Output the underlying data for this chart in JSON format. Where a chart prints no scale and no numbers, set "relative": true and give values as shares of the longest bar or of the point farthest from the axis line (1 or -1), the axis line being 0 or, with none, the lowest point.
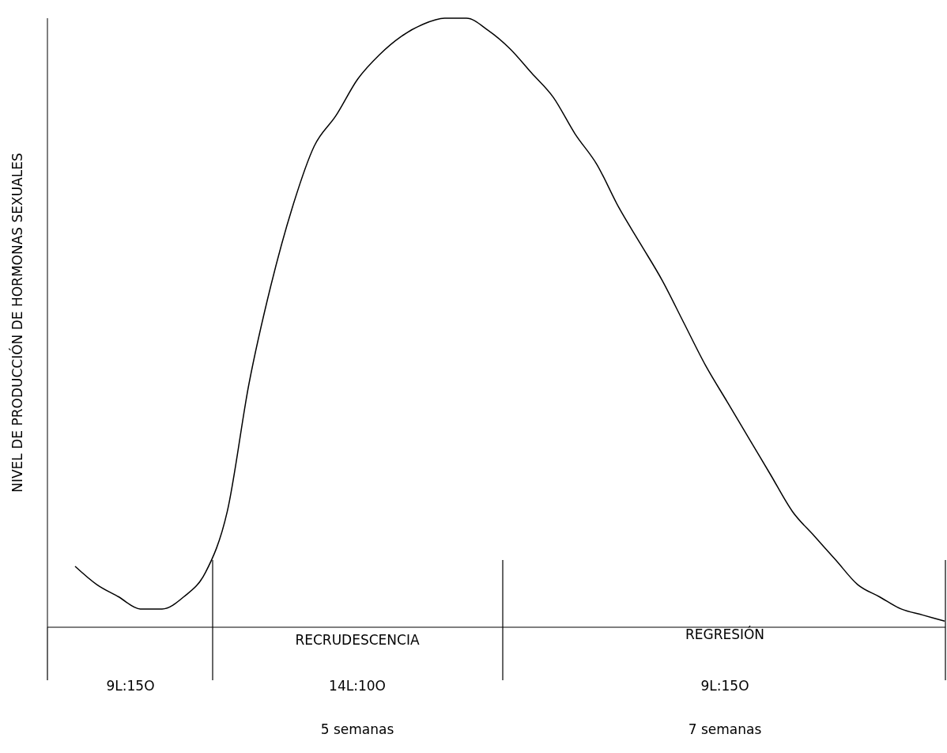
{
  "chart_data": {
    "type": "line",
    "relative": true,
    "ylabel": "NIVEL DE PRODUCCIÓN DE HORMONAS SEXUALES",
    "color": "#000000",
    "marker": "none",
    "grid": false,
    "legend": false,
    "categories": [
      null,
      null,
      null,
      null,
      null,
      null,
      null,
      null,
      null,
      null,
      null,
      null,
      null,
      null,
      null,
      null,
      null,
      null,
      null,
      null,
      null,
      null,
      null,
      null,
      null,
      null,
      null,
      null,
      null,
      null,
      null,
      null,
      null,
      null,
      null,
      null,
      null,
      null,
      null,
      null,
      null
    ],
    "values": [
      0.1,
      0.07,
      0.05,
      0.03,
      0.03,
      0.05,
      0.09,
      0.19,
      0.4,
      0.56,
      0.69,
      0.79,
      0.84,
      0.9,
      0.94,
      0.97,
      0.99,
      1,
      1,
      0.98,
      0.95,
      0.91,
      0.87,
      0.81,
      0.76,
      0.69,
      0.63,
      0.57,
      0.5,
      0.43,
      0.37,
      0.31,
      0.25,
      0.19,
      0.15,
      0.11,
      0.07,
      0.05,
      0.03,
      0.02,
      0.01
    ],
    "annotations": [
      "RECRUDESCENCIA",
      "REGRESIÓN",
      "9L:15O",
      "14L:10O",
      "9L:15O",
      "5 semanas",
      "7 semanas"
    ]
  }
}
